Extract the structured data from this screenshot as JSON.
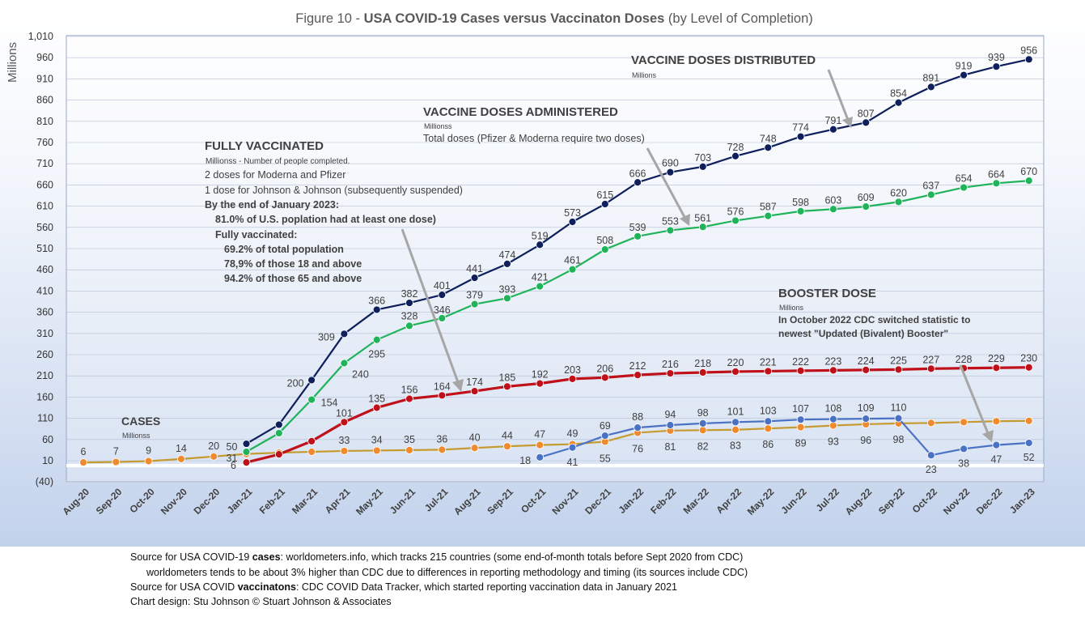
{
  "chart_data": {
    "type": "line",
    "title_prefix": "Figure 10 - ",
    "title_bold": "USA COVID-19 Cases versus Vaccinaton Doses",
    "title_suffix": " (by Level of Completion)",
    "ylabel": "Millions",
    "ylim": [
      -40,
      1010
    ],
    "y_ticks": [
      -40,
      10,
      60,
      110,
      160,
      210,
      260,
      310,
      360,
      410,
      460,
      510,
      560,
      610,
      660,
      710,
      760,
      810,
      860,
      910,
      960,
      1010
    ],
    "y_tick_labels": [
      "(40)",
      "10",
      "60",
      "110",
      "160",
      "210",
      "260",
      "310",
      "360",
      "410",
      "460",
      "510",
      "560",
      "610",
      "660",
      "710",
      "760",
      "810",
      "860",
      "910",
      "960",
      "1,010"
    ],
    "categories": [
      "Aug-20",
      "Sep-20",
      "Oct-20",
      "Nov-20",
      "Dec-20",
      "Jan-21",
      "Feb-21",
      "Mar-21",
      "Apr-21",
      "May-21",
      "Jun-21",
      "Jul-21",
      "Aug-21",
      "Sep-21",
      "Oct-21",
      "Nov-21",
      "Dec-21",
      "Jan-22",
      "Feb-22",
      "Mar-22",
      "Apr-22",
      "May-22",
      "Jun-22",
      "Jul-22",
      "Aug-22",
      "Sep-22",
      "Oct-22",
      "Nov-22",
      "Dec-22",
      "Jan-23"
    ],
    "series": [
      {
        "name": "VACCINE DOSES DISTRIBUTED",
        "color": "#0e1f5b",
        "values": [
          null,
          null,
          null,
          null,
          null,
          50,
          95,
          200,
          309,
          366,
          382,
          401,
          441,
          474,
          519,
          573,
          615,
          666,
          690,
          703,
          728,
          748,
          774,
          791,
          807,
          854,
          891,
          919,
          939,
          956
        ],
        "labels": [
          null,
          null,
          null,
          null,
          null,
          "50",
          null,
          "200",
          "309",
          "366",
          "382",
          "401",
          "441",
          "474",
          "519",
          "573",
          "615",
          "666",
          "690",
          "703",
          "728",
          "748",
          "774",
          "791",
          "807",
          "854",
          "891",
          "919",
          "939",
          "956"
        ]
      },
      {
        "name": "VACCINE DOSES ADMINISTERED",
        "color": "#1fb35a",
        "values": [
          null,
          null,
          null,
          null,
          null,
          31,
          75,
          154,
          240,
          295,
          328,
          346,
          379,
          393,
          421,
          461,
          508,
          539,
          553,
          561,
          576,
          587,
          598,
          603,
          609,
          620,
          637,
          654,
          664,
          670
        ],
        "labels": [
          null,
          null,
          null,
          null,
          null,
          "31",
          null,
          "154",
          "240",
          "295",
          "328",
          "346",
          "379",
          "393",
          "421",
          "461",
          "508",
          "539",
          "553",
          "561",
          "576",
          "587",
          "598",
          "603",
          "609",
          "620",
          "637",
          "654",
          "664",
          "670"
        ]
      },
      {
        "name": "FULLY VACCINATED",
        "color": "#c0101a",
        "values": [
          null,
          null,
          null,
          null,
          null,
          6,
          25,
          56,
          101,
          135,
          156,
          164,
          174,
          185,
          192,
          203,
          206,
          212,
          216,
          218,
          220,
          221,
          222,
          223,
          224,
          225,
          227,
          228,
          229,
          230
        ],
        "labels": [
          null,
          null,
          null,
          null,
          null,
          "6",
          null,
          null,
          "101",
          "135",
          "156",
          "164",
          "174",
          "185",
          "192",
          "203",
          "206",
          "212",
          "216",
          "218",
          "220",
          "221",
          "222",
          "223",
          "224",
          "225",
          "227",
          "228",
          "229",
          "230"
        ]
      },
      {
        "name": "BOOSTER DOSE",
        "color": "#4a72c4",
        "values": [
          null,
          null,
          null,
          null,
          null,
          null,
          null,
          null,
          null,
          null,
          null,
          null,
          null,
          null,
          18,
          41,
          69,
          88,
          94,
          98,
          101,
          103,
          107,
          108,
          109,
          110,
          23,
          38,
          47,
          52
        ],
        "labels": [
          null,
          null,
          null,
          null,
          null,
          null,
          null,
          null,
          null,
          null,
          null,
          null,
          null,
          null,
          "18",
          "41",
          "69",
          "88",
          "94",
          "98",
          "101",
          "103",
          "107",
          "108",
          "109",
          "110",
          "23",
          "38",
          "47",
          "52"
        ]
      },
      {
        "name": "CASES",
        "color": "#ef8a2e",
        "line_color": "#c59a2e",
        "values": [
          6,
          7,
          9,
          14,
          20,
          26,
          29,
          31,
          33,
          34,
          35,
          36,
          40,
          44,
          47,
          49,
          55,
          76,
          81,
          82,
          83,
          86,
          89,
          93,
          96,
          98,
          99,
          101,
          103,
          104
        ],
        "labels": [
          "6",
          "7",
          "9",
          "14",
          "20",
          null,
          null,
          null,
          "33",
          "34",
          "35",
          "36",
          "40",
          "44",
          "47",
          "49",
          "55",
          "76",
          "81",
          "82",
          "83",
          "86",
          "89",
          "93",
          "96",
          "98",
          null,
          null,
          null,
          null
        ]
      }
    ],
    "annotations": {
      "distributed": {
        "title": "VACCINE DOSES DISTRIBUTED",
        "sub": "Millions"
      },
      "administered": {
        "title": "VACCINE DOSES ADMINISTERED",
        "sub": "Millionss",
        "line1": "Total doses (Pfizer & Moderna require two doses)"
      },
      "fully": {
        "title": "FULLY VACCINATED",
        "sub": "Millionss - Number of people completed.",
        "line1": "2 doses for Moderna and Pfizer",
        "line2": "1 dose for Johnson & Johnson (subsequently suspended)",
        "line3": "By the end of January 2023:",
        "line4": "81.0% of U.S. poplation had at least one dose)",
        "line5": "Fully vaccinated:",
        "line6": "69.2% of total population",
        "line7": "78,9% of those 18 and above",
        "line8": "94.2% of those 65 and above"
      },
      "booster": {
        "title": "BOOSTER DOSE",
        "sub": "Millions",
        "line1": "In October 2022 CDC switched statistic to",
        "line2": "newest \"Updated (Bivalent) Booster\""
      },
      "cases": {
        "title": "CASES",
        "sub": "Millionss"
      }
    }
  },
  "footer": {
    "line1_pre": "Source for USA COVID-19 ",
    "line1_bold": "cases",
    "line1_post": ": worldometers.info, which tracks 215 countries  (some end-of-month totals before Sept 2020 from CDC)",
    "line2": "worldometers tends to be about 3% higher than CDC due to differences in reporting methodology and timing (its sources include CDC)",
    "line3_pre": "Source for USA COVID ",
    "line3_bold": "vaccinatons",
    "line3_post": ": CDC COVID Data Tracker, which started reporting vaccination data in January 2021",
    "line4": "Chart design: Stu Johnson © Stuart Johnson & Associates"
  }
}
